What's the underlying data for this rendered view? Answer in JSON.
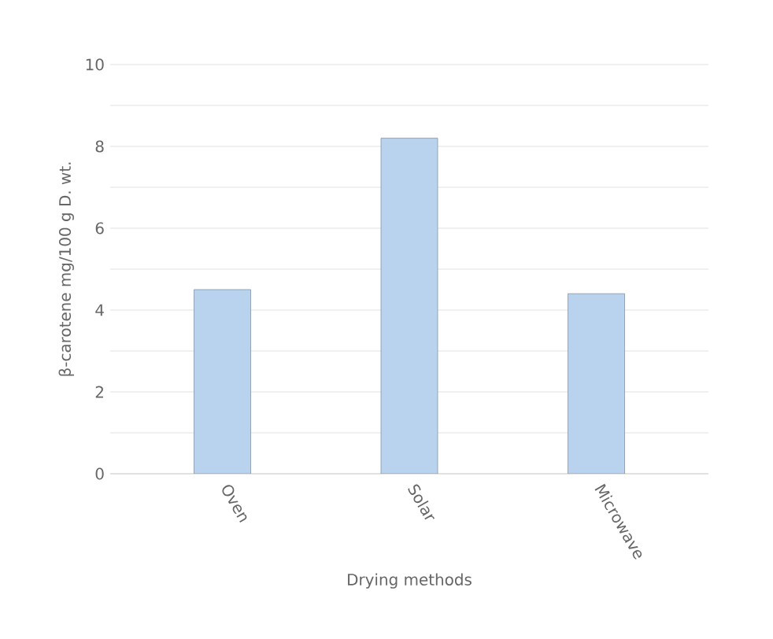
{
  "chart_data": {
    "type": "bar",
    "xlabel": "Drying methods",
    "ylabel": "β-carotene mg/100 g D. wt.",
    "categories": [
      "Oven",
      "Solar",
      "Microwave"
    ],
    "values": [
      4.5,
      8.2,
      4.4
    ],
    "color": "#b9d3ee",
    "ylim": [
      0,
      10
    ],
    "yticks": [
      0,
      {
        "value": 1,
        "label": null
      },
      2,
      {
        "value": 3,
        "label": null
      },
      4,
      {
        "value": 5,
        "label": null
      },
      6,
      {
        "value": 7,
        "label": null
      },
      8,
      {
        "value": 9,
        "label": null
      },
      10
    ],
    "grid": "y"
  }
}
